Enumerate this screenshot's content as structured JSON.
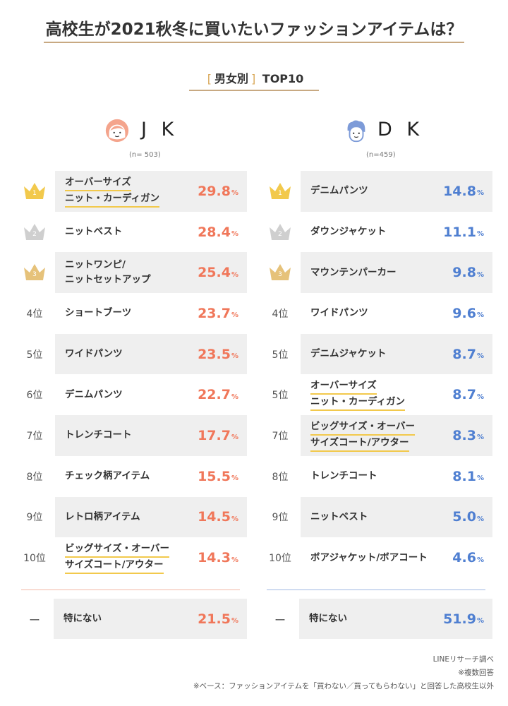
{
  "title": "高校生が2021秋冬に買いたいファッションアイテムは？",
  "subtitle": {
    "bracket_open": "[",
    "label": "男女別",
    "bracket_close": "]",
    "suffix": "TOP10"
  },
  "colors": {
    "jk_accent": "#f0775a",
    "dk_accent": "#4f7fd1",
    "gold": "#f2c94c",
    "silver": "#cfcfcf",
    "bronze": "#e6c27a"
  },
  "chart_data": [
    {
      "type": "table",
      "header": "J K",
      "n": "(n= 503)",
      "rows": [
        {
          "rank": "1",
          "lines": [
            "オーバーサイズ",
            "ニット・カーディガン"
          ],
          "underline": true,
          "value": "29.8",
          "unit": "%"
        },
        {
          "rank": "2",
          "lines": [
            "ニットベスト"
          ],
          "underline": false,
          "value": "28.4",
          "unit": "%"
        },
        {
          "rank": "3",
          "lines": [
            "ニットワンピ/",
            "ニットセットアップ"
          ],
          "underline": false,
          "value": "25.4",
          "unit": "%"
        },
        {
          "rank": "4位",
          "lines": [
            "ショートブーツ"
          ],
          "underline": false,
          "value": "23.7",
          "unit": "%"
        },
        {
          "rank": "5位",
          "lines": [
            "ワイドパンツ"
          ],
          "underline": false,
          "value": "23.5",
          "unit": "%"
        },
        {
          "rank": "6位",
          "lines": [
            "デニムパンツ"
          ],
          "underline": false,
          "value": "22.7",
          "unit": "%"
        },
        {
          "rank": "7位",
          "lines": [
            "トレンチコート"
          ],
          "underline": false,
          "value": "17.7",
          "unit": "%"
        },
        {
          "rank": "8位",
          "lines": [
            "チェック柄アイテム"
          ],
          "underline": false,
          "value": "15.5",
          "unit": "%"
        },
        {
          "rank": "9位",
          "lines": [
            "レトロ柄アイテム"
          ],
          "underline": false,
          "value": "14.5",
          "unit": "%"
        },
        {
          "rank": "10位",
          "lines": [
            "ビッグサイズ・オーバー",
            "サイズコート/アウター"
          ],
          "underline": true,
          "value": "14.3",
          "unit": "%"
        }
      ],
      "none": {
        "rank": "ー",
        "label": "特にない",
        "value": "21.5",
        "unit": "%"
      }
    },
    {
      "type": "table",
      "header": "D K",
      "n": "(n=459)",
      "rows": [
        {
          "rank": "1",
          "lines": [
            "デニムパンツ"
          ],
          "underline": false,
          "value": "14.8",
          "unit": "%"
        },
        {
          "rank": "2",
          "lines": [
            "ダウンジャケット"
          ],
          "underline": false,
          "value": "11.1",
          "unit": "%"
        },
        {
          "rank": "3",
          "lines": [
            "マウンテンパーカー"
          ],
          "underline": false,
          "value": "9.8",
          "unit": "%"
        },
        {
          "rank": "4位",
          "lines": [
            "ワイドパンツ"
          ],
          "underline": false,
          "value": "9.6",
          "unit": "%"
        },
        {
          "rank": "5位",
          "lines": [
            "デニムジャケット"
          ],
          "underline": false,
          "value": "8.7",
          "unit": "%"
        },
        {
          "rank": "5位",
          "lines": [
            "オーバーサイズ",
            "ニット・カーディガン"
          ],
          "underline": true,
          "value": "8.7",
          "unit": "%"
        },
        {
          "rank": "7位",
          "lines": [
            "ビッグサイズ・オーバー",
            "サイズコート/アウター"
          ],
          "underline": true,
          "value": "8.3",
          "unit": "%"
        },
        {
          "rank": "8位",
          "lines": [
            "トレンチコート"
          ],
          "underline": false,
          "value": "8.1",
          "unit": "%"
        },
        {
          "rank": "9位",
          "lines": [
            "ニットベスト"
          ],
          "underline": false,
          "value": "5.0",
          "unit": "%"
        },
        {
          "rank": "10位",
          "lines": [
            "ボアジャケット/ボアコート"
          ],
          "underline": false,
          "value": "4.6",
          "unit": "%"
        }
      ],
      "none": {
        "rank": "ー",
        "label": "特にない",
        "value": "51.9",
        "unit": "%"
      }
    }
  ],
  "footer": [
    "LINEリサーチ調べ",
    "※複数回答",
    "※ベース：ファッションアイテムを「買わない／買ってもらわない」と回答した高校生以外"
  ]
}
